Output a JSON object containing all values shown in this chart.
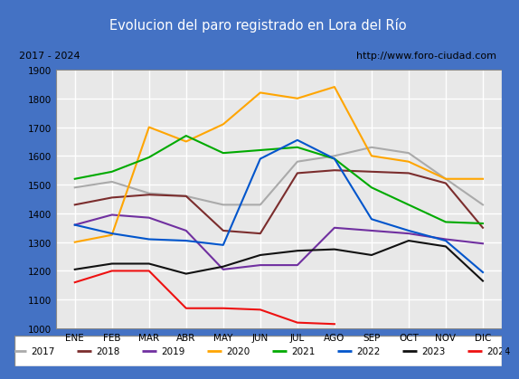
{
  "title": "Evolucion del paro registrado en Lora del Río",
  "title_bg": "#4472c4",
  "subtitle_left": "2017 - 2024",
  "subtitle_right": "http://www.foro-ciudad.com",
  "months": [
    "ENE",
    "FEB",
    "MAR",
    "ABR",
    "MAY",
    "JUN",
    "JUL",
    "AGO",
    "SEP",
    "OCT",
    "NOV",
    "DIC"
  ],
  "ylim": [
    1000,
    1900
  ],
  "yticks": [
    1000,
    1100,
    1200,
    1300,
    1400,
    1500,
    1600,
    1700,
    1800,
    1900
  ],
  "series": {
    "2017": {
      "color": "#aaaaaa",
      "data": [
        1490,
        1510,
        1470,
        1460,
        1430,
        1430,
        1580,
        1600,
        1630,
        1610,
        1520,
        1430
      ]
    },
    "2018": {
      "color": "#7b2d2d",
      "data": [
        1430,
        1455,
        1465,
        1460,
        1340,
        1330,
        1540,
        1550,
        1545,
        1540,
        1505,
        1350
      ]
    },
    "2019": {
      "color": "#7030a0",
      "data": [
        1360,
        1395,
        1385,
        1340,
        1205,
        1220,
        1220,
        1350,
        1340,
        1330,
        1310,
        1295
      ]
    },
    "2020": {
      "color": "#ffa500",
      "data": [
        1300,
        1325,
        1700,
        1650,
        1710,
        1820,
        1800,
        1840,
        1600,
        1580,
        1520,
        1520
      ]
    },
    "2021": {
      "color": "#00aa00",
      "data": [
        1520,
        1545,
        1595,
        1670,
        1610,
        1620,
        1630,
        1590,
        1490,
        1430,
        1370,
        1365
      ]
    },
    "2022": {
      "color": "#0055cc",
      "data": [
        1360,
        1330,
        1310,
        1305,
        1290,
        1590,
        1655,
        1590,
        1380,
        1340,
        1305,
        1195
      ]
    },
    "2023": {
      "color": "#111111",
      "data": [
        1205,
        1225,
        1225,
        1190,
        1215,
        1255,
        1270,
        1275,
        1255,
        1305,
        1285,
        1165
      ]
    },
    "2024": {
      "color": "#ee1111",
      "data": [
        1160,
        1200,
        1200,
        1070,
        1070,
        1065,
        1020,
        1015,
        null,
        null,
        null,
        null
      ]
    }
  },
  "legend_order": [
    "2017",
    "2018",
    "2019",
    "2020",
    "2021",
    "2022",
    "2023",
    "2024"
  ]
}
